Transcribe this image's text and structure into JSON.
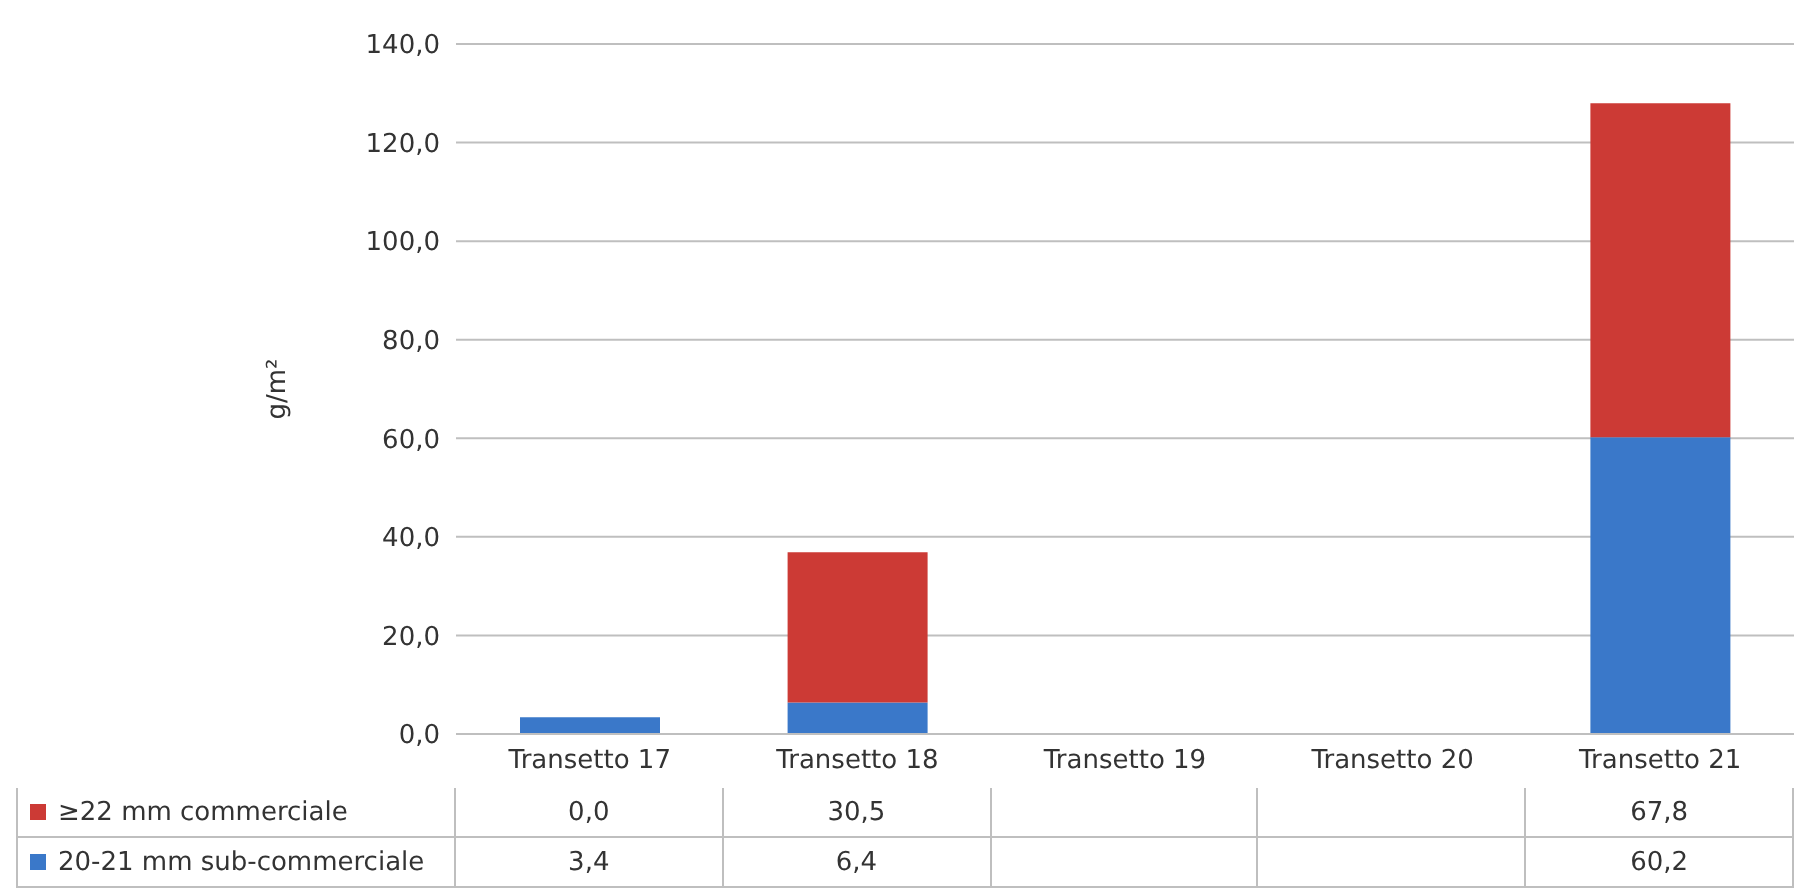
{
  "chart_data": {
    "type": "bar",
    "stacked": true,
    "ylabel": "g/m²",
    "categories": [
      "Transetto 17",
      "Transetto 18",
      "Transetto 19",
      "Transetto 20",
      "Transetto 21"
    ],
    "series": [
      {
        "name": "20-21 mm sub-commerciale",
        "color": "#3a78c9",
        "values": [
          3.4,
          6.4,
          null,
          null,
          60.2
        ],
        "value_labels": [
          "3,4",
          "6,4",
          null,
          null,
          "60,2"
        ]
      },
      {
        "name": "≥22 mm commerciale",
        "color": "#cc3a35",
        "values": [
          0.0,
          30.5,
          null,
          null,
          67.8
        ],
        "value_labels": [
          "0,0",
          "30,5",
          null,
          null,
          "67,8"
        ]
      }
    ],
    "ylim": [
      0,
      140
    ],
    "yticks": [
      {
        "value": 0,
        "label": "0,0"
      },
      {
        "value": 20,
        "label": "20,0"
      },
      {
        "value": 40,
        "label": "40,0"
      },
      {
        "value": 60,
        "label": "60,0"
      },
      {
        "value": 80,
        "label": "80,0"
      },
      {
        "value": 100,
        "label": "100,0"
      },
      {
        "value": 120,
        "label": "120,0"
      },
      {
        "value": 140,
        "label": "140,0"
      }
    ],
    "grid": "y",
    "legend": "bottom"
  }
}
